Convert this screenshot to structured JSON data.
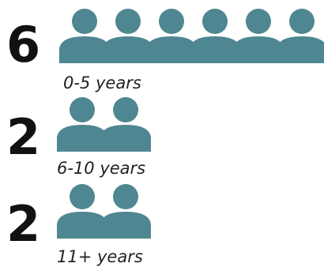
{
  "chart_data": {
    "type": "pictograph",
    "icon": "person-icon",
    "colors": {
      "icon": "#4e8691",
      "text": "#111111"
    },
    "categories": [
      "0-5 years",
      "6-10 years",
      "11+ years"
    ],
    "values": [
      6,
      2,
      2
    ],
    "value_labels": [
      "6",
      "2",
      "2"
    ]
  }
}
